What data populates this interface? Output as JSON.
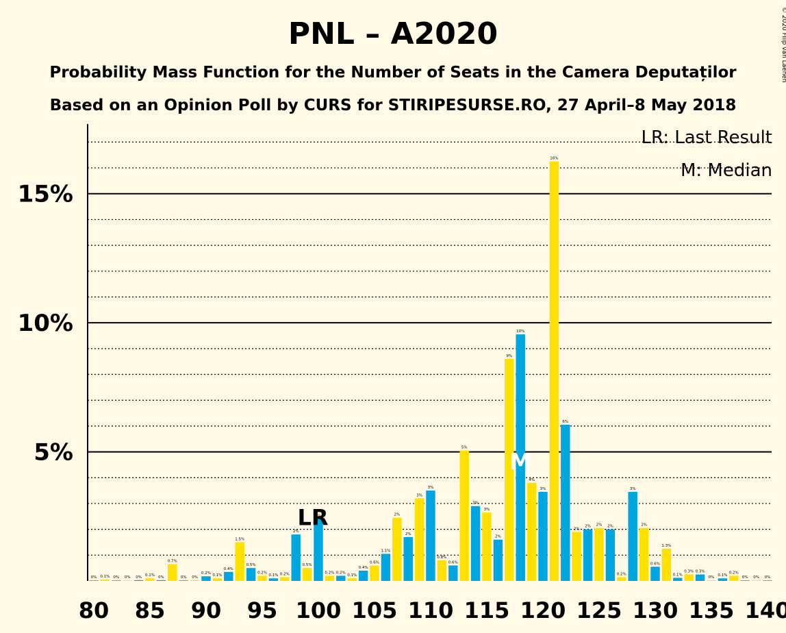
{
  "title": "PNL – A2020",
  "subtitle1": "Probability Mass Function for the Number of Seats in the Camera Deputaților",
  "subtitle2": "Based on an Opinion Poll by CURS for STIRIPESURSE.RO, 27 April–8 May 2018",
  "copyright": "© 2020 Filip van Laenen",
  "legend": {
    "lr": "LR: Last Result",
    "m": "M: Median"
  },
  "markers": {
    "lr_label": "LR",
    "lr_seat": 100,
    "median_label": "M",
    "median_seat": 118
  },
  "colors": {
    "blue": "#00A6E0",
    "yellow": "#FFE000",
    "background": "#FFF9E5",
    "median": "#FFFFFF"
  },
  "chart_data": {
    "type": "bar",
    "xlabel": "",
    "ylabel": "",
    "xlim": [
      80,
      140
    ],
    "ylim": [
      0,
      17.7
    ],
    "x_ticks": [
      80,
      85,
      90,
      95,
      100,
      105,
      110,
      115,
      120,
      125,
      130,
      135,
      140
    ],
    "y_ticks": [
      {
        "value": 5,
        "label": "5%"
      },
      {
        "value": 10,
        "label": "10%"
      },
      {
        "value": 15,
        "label": "15%"
      }
    ],
    "grid": true,
    "legend_position": "top-right",
    "seats": [
      80,
      81,
      82,
      83,
      84,
      85,
      86,
      87,
      88,
      89,
      90,
      91,
      92,
      93,
      94,
      95,
      96,
      97,
      98,
      99,
      100,
      101,
      102,
      103,
      104,
      105,
      106,
      107,
      108,
      109,
      110,
      111,
      112,
      113,
      114,
      115,
      116,
      117,
      118,
      119,
      120,
      121,
      122,
      123,
      124,
      125,
      126,
      127,
      128,
      129,
      130,
      131,
      132,
      133,
      134,
      135,
      136,
      137,
      138,
      139,
      140
    ],
    "values": [
      0.02,
      0.05,
      0.02,
      0.02,
      0.03,
      0.1,
      0.03,
      0.65,
      0.02,
      0.03,
      0.18,
      0.1,
      0.35,
      1.5,
      0.5,
      0.2,
      0.1,
      0.15,
      1.8,
      0.5,
      2.4,
      0.2,
      0.2,
      0.1,
      0.4,
      0.6,
      1.05,
      2.45,
      1.7,
      3.2,
      3.5,
      0.8,
      0.6,
      5.05,
      2.9,
      2.65,
      1.6,
      8.6,
      9.55,
      3.8,
      3.45,
      16.25,
      6.05,
      1.9,
      2.0,
      2.05,
      2.0,
      0.15,
      3.45,
      2.05,
      0.55,
      1.25,
      0.12,
      0.25,
      0.25,
      0.02,
      0.1,
      0.2,
      0.02,
      0.02,
      0.02
    ],
    "labels": [
      "0%",
      "0.1%",
      "0%",
      "0%",
      "0%",
      "0.1%",
      "0%",
      "0.7%",
      "0%",
      "0%",
      "0.2%",
      "0.1%",
      "0.4%",
      "1.5%",
      "0.5%",
      "0.2%",
      "0.1%",
      "0.2%",
      "2%",
      "0.5%",
      "2%",
      "0.2%",
      "0.2%",
      "0.1%",
      "0.4%",
      "0.6%",
      "1.1%",
      "2%",
      "2%",
      "3%",
      "3%",
      "0.8%",
      "0.6%",
      "5%",
      "3%",
      "3%",
      "2%",
      "9%",
      "10%",
      "4%",
      "3%",
      "16%",
      "6%",
      "2%",
      "2%",
      "2%",
      "2%",
      "0.2%",
      "3%",
      "2%",
      "0.6%",
      "1.3%",
      "0.1%",
      "0.3%",
      "0.3%",
      "0%",
      "0.1%",
      "0.2%",
      "0%",
      "0%",
      "0%"
    ]
  }
}
